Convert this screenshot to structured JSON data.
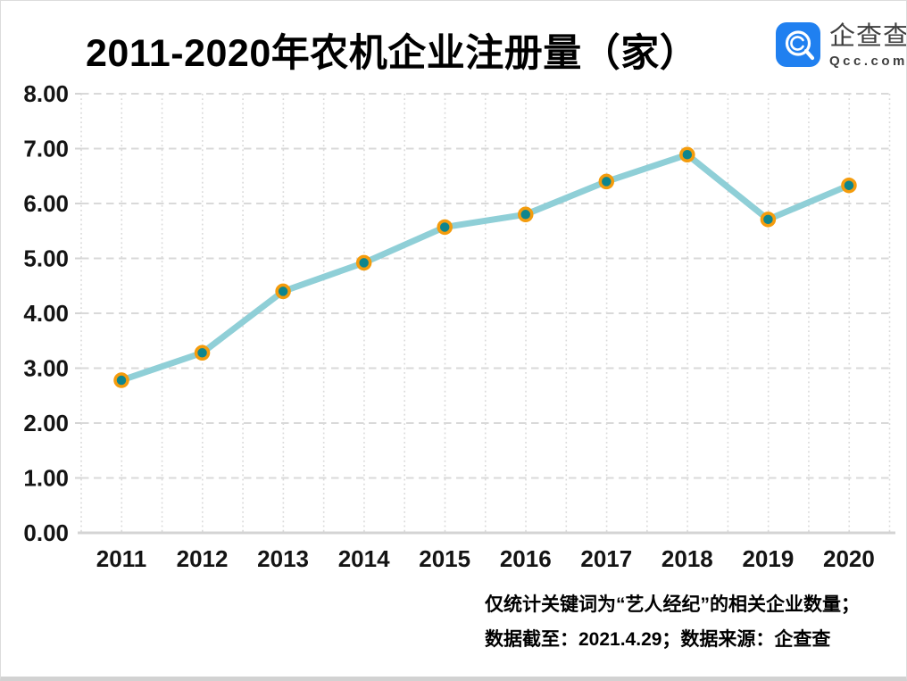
{
  "page": {
    "background": "#ffffff",
    "border_color": "#dcdcdc"
  },
  "header": {
    "title": "2011-2020年农机企业注册量（家）",
    "logo": {
      "brand_cn": "企查查",
      "brand_en": "Qcc.com",
      "icon": "qcc-magnifier-icon",
      "badge_color": "#2080f0",
      "text_color": "#3f3f3f"
    }
  },
  "chart_data": {
    "type": "line",
    "title": "2011-2020年农机企业注册量（家）",
    "categories": [
      "2011",
      "2012",
      "2013",
      "2014",
      "2015",
      "2016",
      "2017",
      "2018",
      "2019",
      "2020"
    ],
    "values": [
      2.78,
      3.28,
      4.4,
      4.92,
      5.57,
      5.8,
      6.4,
      6.89,
      5.71,
      6.33
    ],
    "xlabel": "",
    "ylabel": "",
    "ylim": [
      0,
      8
    ],
    "ytick_labels": [
      "0.00",
      "1.00",
      "2.00",
      "3.00",
      "4.00",
      "5.00",
      "6.00",
      "7.00",
      "8.00"
    ],
    "grid": "dashed horizontal and dotted vertical, half-category spacing",
    "legend": false,
    "colors": {
      "line": "#8fcfd7",
      "marker_fill": "#0e858d",
      "marker_ring": "#f49c0d",
      "grid": "#d9d9d9",
      "axis": "#d4d4d4",
      "tick_label": "#141414"
    }
  },
  "footnote": {
    "line1": "仅统计关键词为“艺人经纪”的相关企业数量；",
    "line2": "数据截至：2021.4.29；数据来源：企查查"
  }
}
